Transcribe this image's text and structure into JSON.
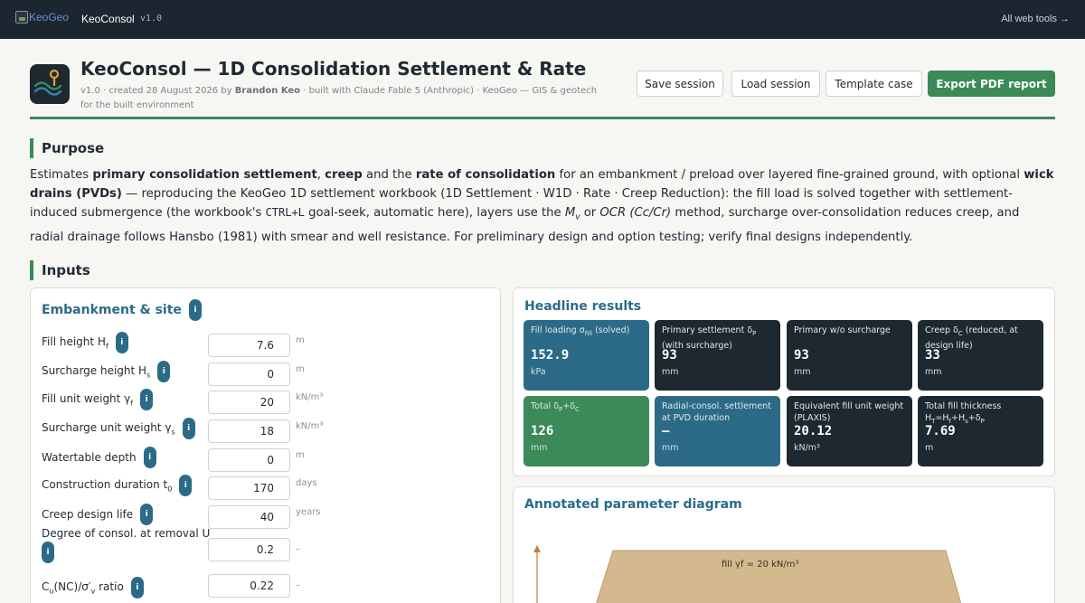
{
  "topbar": {
    "logo_alt": "KeoGeo",
    "app_name": "KeoConsol",
    "version": "v1.0",
    "all_tools": "All web tools →"
  },
  "header": {
    "title": "KeoConsol — 1D Consolidation Settlement & Rate",
    "subtitle_pre": "v1.0 · created 28 August 2026 by ",
    "subtitle_author": "Brandon Keo",
    "subtitle_post": " · built with Claude Fable 5 (Anthropic) · KeoGeo — GIS & geotech for the built environment",
    "buttons": {
      "save": "Save session",
      "load": "Load session",
      "template": "Template case",
      "export": "Export PDF report"
    }
  },
  "purpose": {
    "heading": "Purpose",
    "t1": "Estimates ",
    "b1": "primary consolidation settlement",
    "t2": ", ",
    "b2": "creep",
    "t3": " and the ",
    "b3": "rate of consolidation",
    "t4": " for an embankment / preload over layered fine-grained ground, with optional ",
    "b4": "wick drains (PVDs)",
    "t5": " — reproducing the KeoGeo 1D settlement workbook (1D Settlement · W1D · Rate · Creep Reduction): the fill load is solved together with settlement-induced submergence (the workbook's ",
    "mono1": "CTRL+L",
    "t6": " goal-seek, automatic here), layers use the ",
    "i1": "M",
    "i1sub": "v",
    "t7": " or ",
    "i2": "OCR (Cc/Cr)",
    "t8": " method, surcharge over-consolidation reduces creep, and radial drainage follows Hansbo (1981) with smear and well resistance. For preliminary design and option testing; verify final designs independently."
  },
  "inputs": {
    "heading": "Inputs",
    "panel_title": "Embankment & site",
    "info_glyph": "i",
    "rows": [
      {
        "label": "Fill height H",
        "sub": "f",
        "value": "7.6",
        "unit": "m"
      },
      {
        "label": "Surcharge height H",
        "sub": "s",
        "value": "0",
        "unit": "m"
      },
      {
        "label": "Fill unit weight γ",
        "sub": "f",
        "value": "20",
        "unit": "kN/m³"
      },
      {
        "label": "Surcharge unit weight γ",
        "sub": "s",
        "value": "18",
        "unit": "kN/m³"
      },
      {
        "label": "Watertable depth",
        "sub": "",
        "value": "0",
        "unit": "m"
      },
      {
        "label": "Construction duration t",
        "sub": "0",
        "value": "170",
        "unit": "days"
      },
      {
        "label": "Creep design life",
        "sub": "",
        "value": "40",
        "unit": "years"
      },
      {
        "label": "Degree of consol. at removal U",
        "sub": "",
        "value": "0.2",
        "unit": "–"
      },
      {
        "label": "C",
        "sub": "u",
        "label_post": "(NC)/σ′",
        "sub2": "v",
        "label_post2": " ratio",
        "value": "0.22",
        "unit": "–"
      }
    ]
  },
  "results": {
    "title": "Headline results",
    "cards": [
      {
        "label": "Fill loading σ",
        "sub": "fill",
        "label_post": " (solved)",
        "value": "152.9",
        "unit": "kPa",
        "color": "blue"
      },
      {
        "label": "Primary settlement δ",
        "sub": "P",
        "label_post": " (with surcharge)",
        "value": "93",
        "unit": "mm",
        "color": "dark"
      },
      {
        "label": "Primary w/o surcharge",
        "sub": "",
        "label_post": "",
        "value": "93",
        "unit": "mm",
        "color": "dark"
      },
      {
        "label": "Creep δ",
        "sub": "C",
        "label_post": " (reduced, at design life)",
        "value": "33",
        "unit": "mm",
        "color": "dark"
      },
      {
        "label": "Total δ",
        "sub": "P",
        "label_post": "+δ",
        "sub2": "C",
        "value": "126",
        "unit": "mm",
        "color": "green"
      },
      {
        "label": "Radial-consol. settlement at PVD duration",
        "sub": "",
        "label_post": "",
        "value": "–",
        "unit": "mm",
        "color": "blue"
      },
      {
        "label": "Equivalent fill unit weight (PLAXIS)",
        "sub": "",
        "label_post": "",
        "value": "20.12",
        "unit": "kN/m³",
        "color": "dark"
      },
      {
        "label": "Total fill thickness H",
        "sub": "T",
        "label_post": "=H",
        "sub2": "f",
        "label_post2": "+H",
        "sub3": "s",
        "label_post3": "+δ",
        "sub4": "P",
        "value": "7.69",
        "unit": "m",
        "color": "dark"
      }
    ]
  },
  "diagram": {
    "title": "Annotated parameter diagram",
    "fill_label": "fill γf = 20 kN/m³"
  },
  "colors": {
    "accent_green": "#3b8a58",
    "accent_blue": "#2b6b87",
    "dark": "#1d2830",
    "fill": "#d4b98e"
  }
}
